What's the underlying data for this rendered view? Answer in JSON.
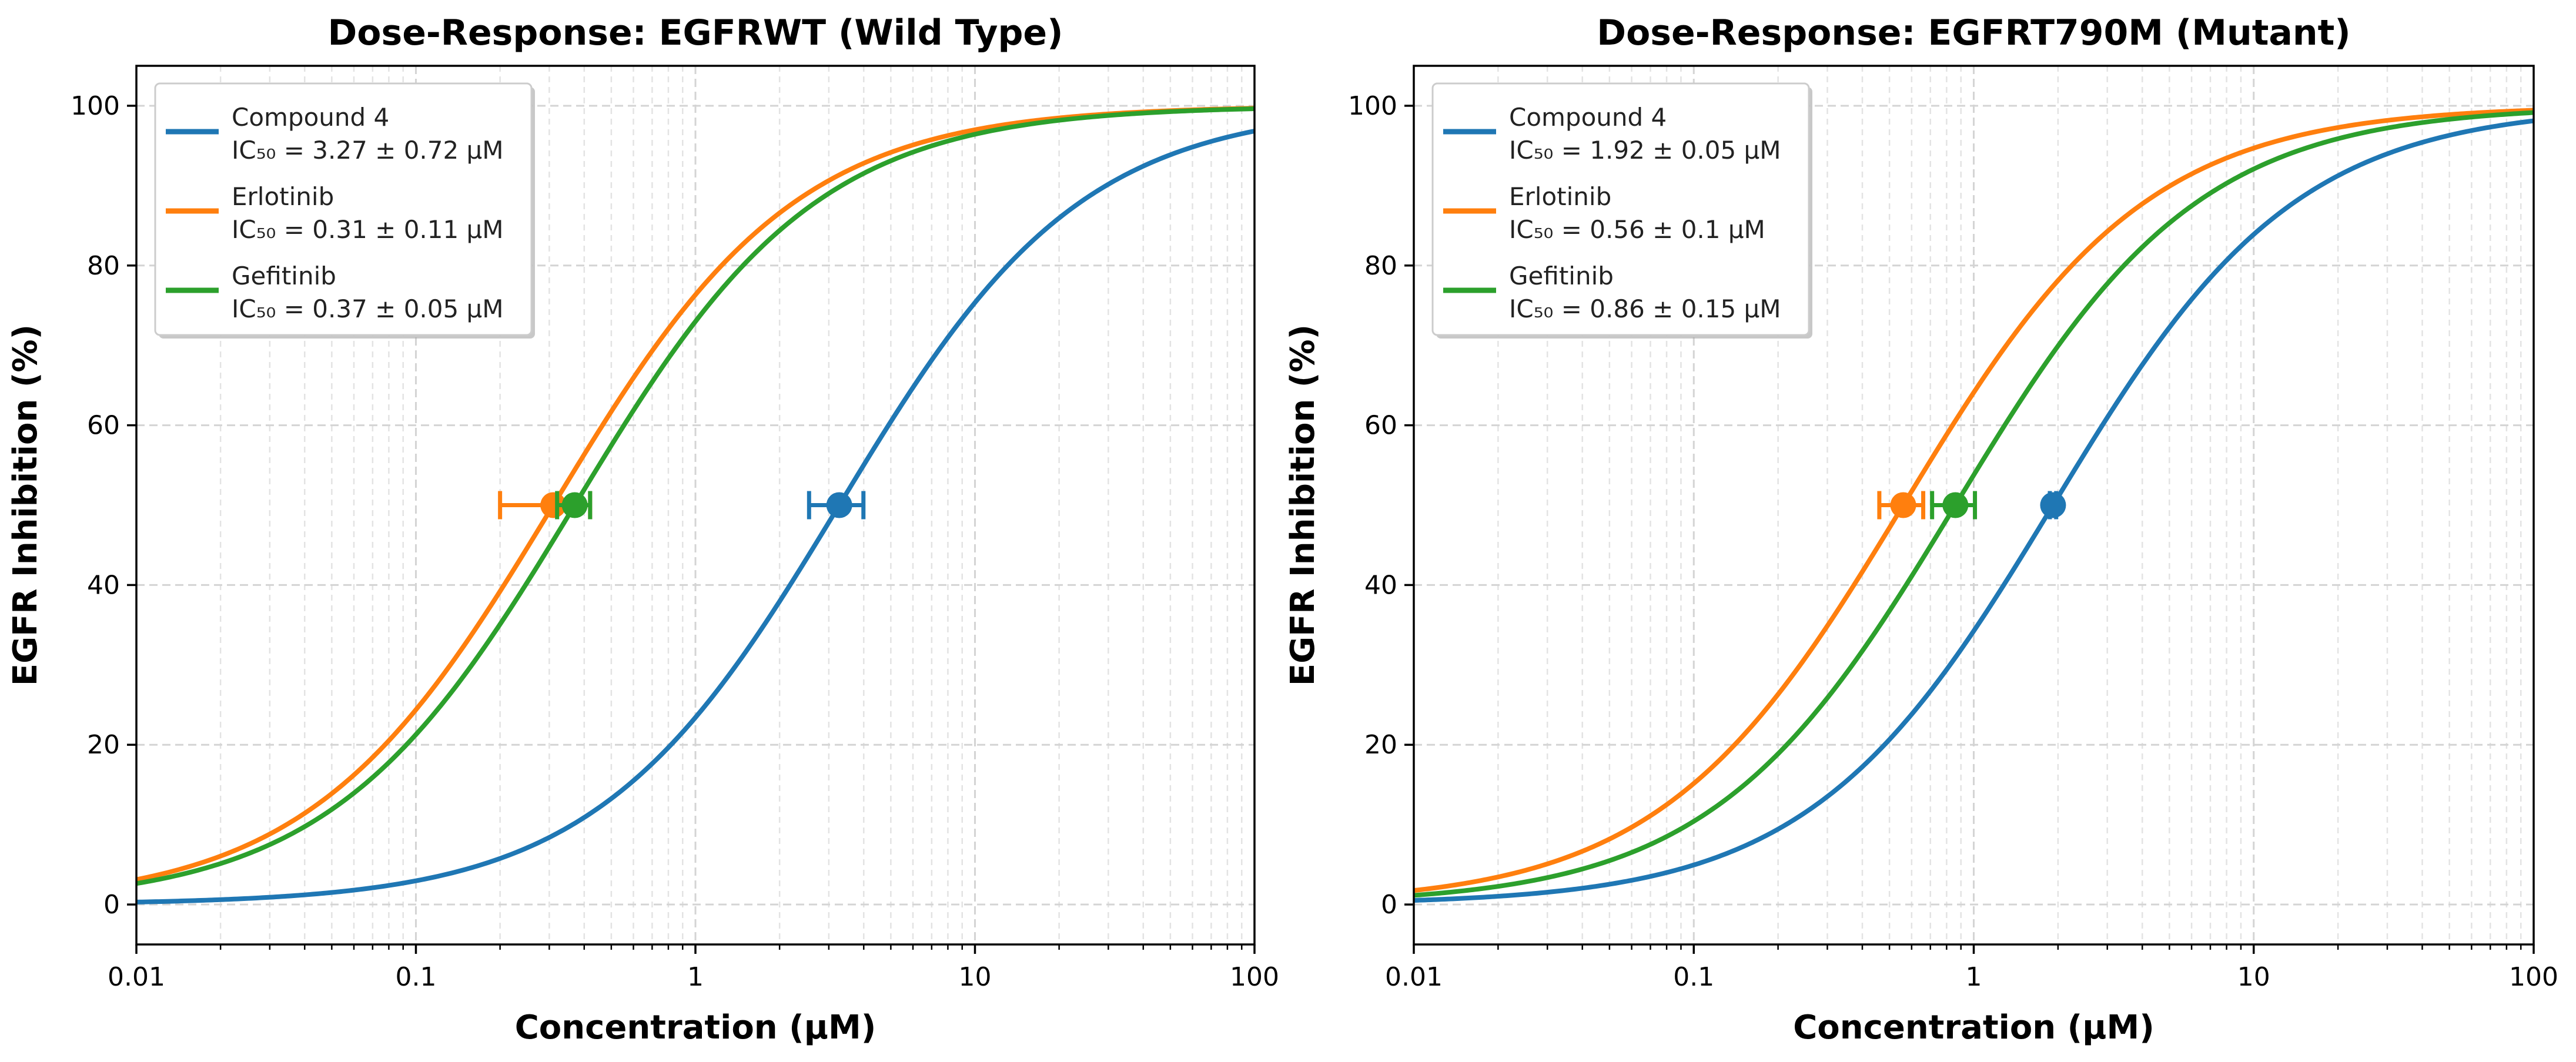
{
  "chart_data": [
    {
      "type": "line",
      "title": "Dose-Response: EGFRWT (Wild Type)",
      "xlabel": "Concentration (μM)",
      "ylabel": "EGFR Inhibition (%)",
      "xscale": "log",
      "xlim": [
        0.01,
        100
      ],
      "ylim": [
        -5,
        105
      ],
      "xticks": [
        0.01,
        0.1,
        1,
        10,
        100
      ],
      "xtick_labels": [
        "0.01",
        "0.1",
        "1",
        "10",
        "100"
      ],
      "yticks": [
        0,
        20,
        40,
        60,
        80,
        100
      ],
      "ytick_labels": [
        "0",
        "20",
        "40",
        "60",
        "80",
        "100"
      ],
      "grid": true,
      "legend_position": "top-left",
      "series": [
        {
          "name": "Compound 4",
          "ic50_label": "IC₅₀ = 3.27 ± 0.72 μM",
          "ic50": 3.27,
          "error": 0.72,
          "hill": 1.0,
          "color": "#1f77b4"
        },
        {
          "name": "Erlotinib",
          "ic50_label": "IC₅₀ = 0.31 ± 0.11 μM",
          "ic50": 0.31,
          "error": 0.11,
          "hill": 1.0,
          "color": "#ff7f0e"
        },
        {
          "name": "Gefitinib",
          "ic50_label": "IC₅₀ = 0.37 ± 0.05 μM",
          "ic50": 0.37,
          "error": 0.05,
          "hill": 1.0,
          "color": "#2ca02c"
        }
      ]
    },
    {
      "type": "line",
      "title": "Dose-Response: EGFRT790M (Mutant)",
      "xlabel": "Concentration (μM)",
      "ylabel": "EGFR Inhibition (%)",
      "xscale": "log",
      "xlim": [
        0.01,
        100
      ],
      "ylim": [
        -5,
        105
      ],
      "xticks": [
        0.01,
        0.1,
        1,
        10,
        100
      ],
      "xtick_labels": [
        "0.01",
        "0.1",
        "1",
        "10",
        "100"
      ],
      "yticks": [
        0,
        20,
        40,
        60,
        80,
        100
      ],
      "ytick_labels": [
        "0",
        "20",
        "40",
        "60",
        "80",
        "100"
      ],
      "grid": true,
      "legend_position": "top-left",
      "series": [
        {
          "name": "Compound 4",
          "ic50_label": "IC₅₀ = 1.92 ± 0.05 μM",
          "ic50": 1.92,
          "error": 0.05,
          "hill": 1.0,
          "color": "#1f77b4"
        },
        {
          "name": "Erlotinib",
          "ic50_label": "IC₅₀ = 0.56 ± 0.1 μM",
          "ic50": 0.56,
          "error": 0.1,
          "hill": 1.0,
          "color": "#ff7f0e"
        },
        {
          "name": "Gefitinib",
          "ic50_label": "IC₅₀ = 0.86 ± 0.15 μM",
          "ic50": 0.86,
          "error": 0.15,
          "hill": 1.0,
          "color": "#2ca02c"
        }
      ]
    }
  ]
}
